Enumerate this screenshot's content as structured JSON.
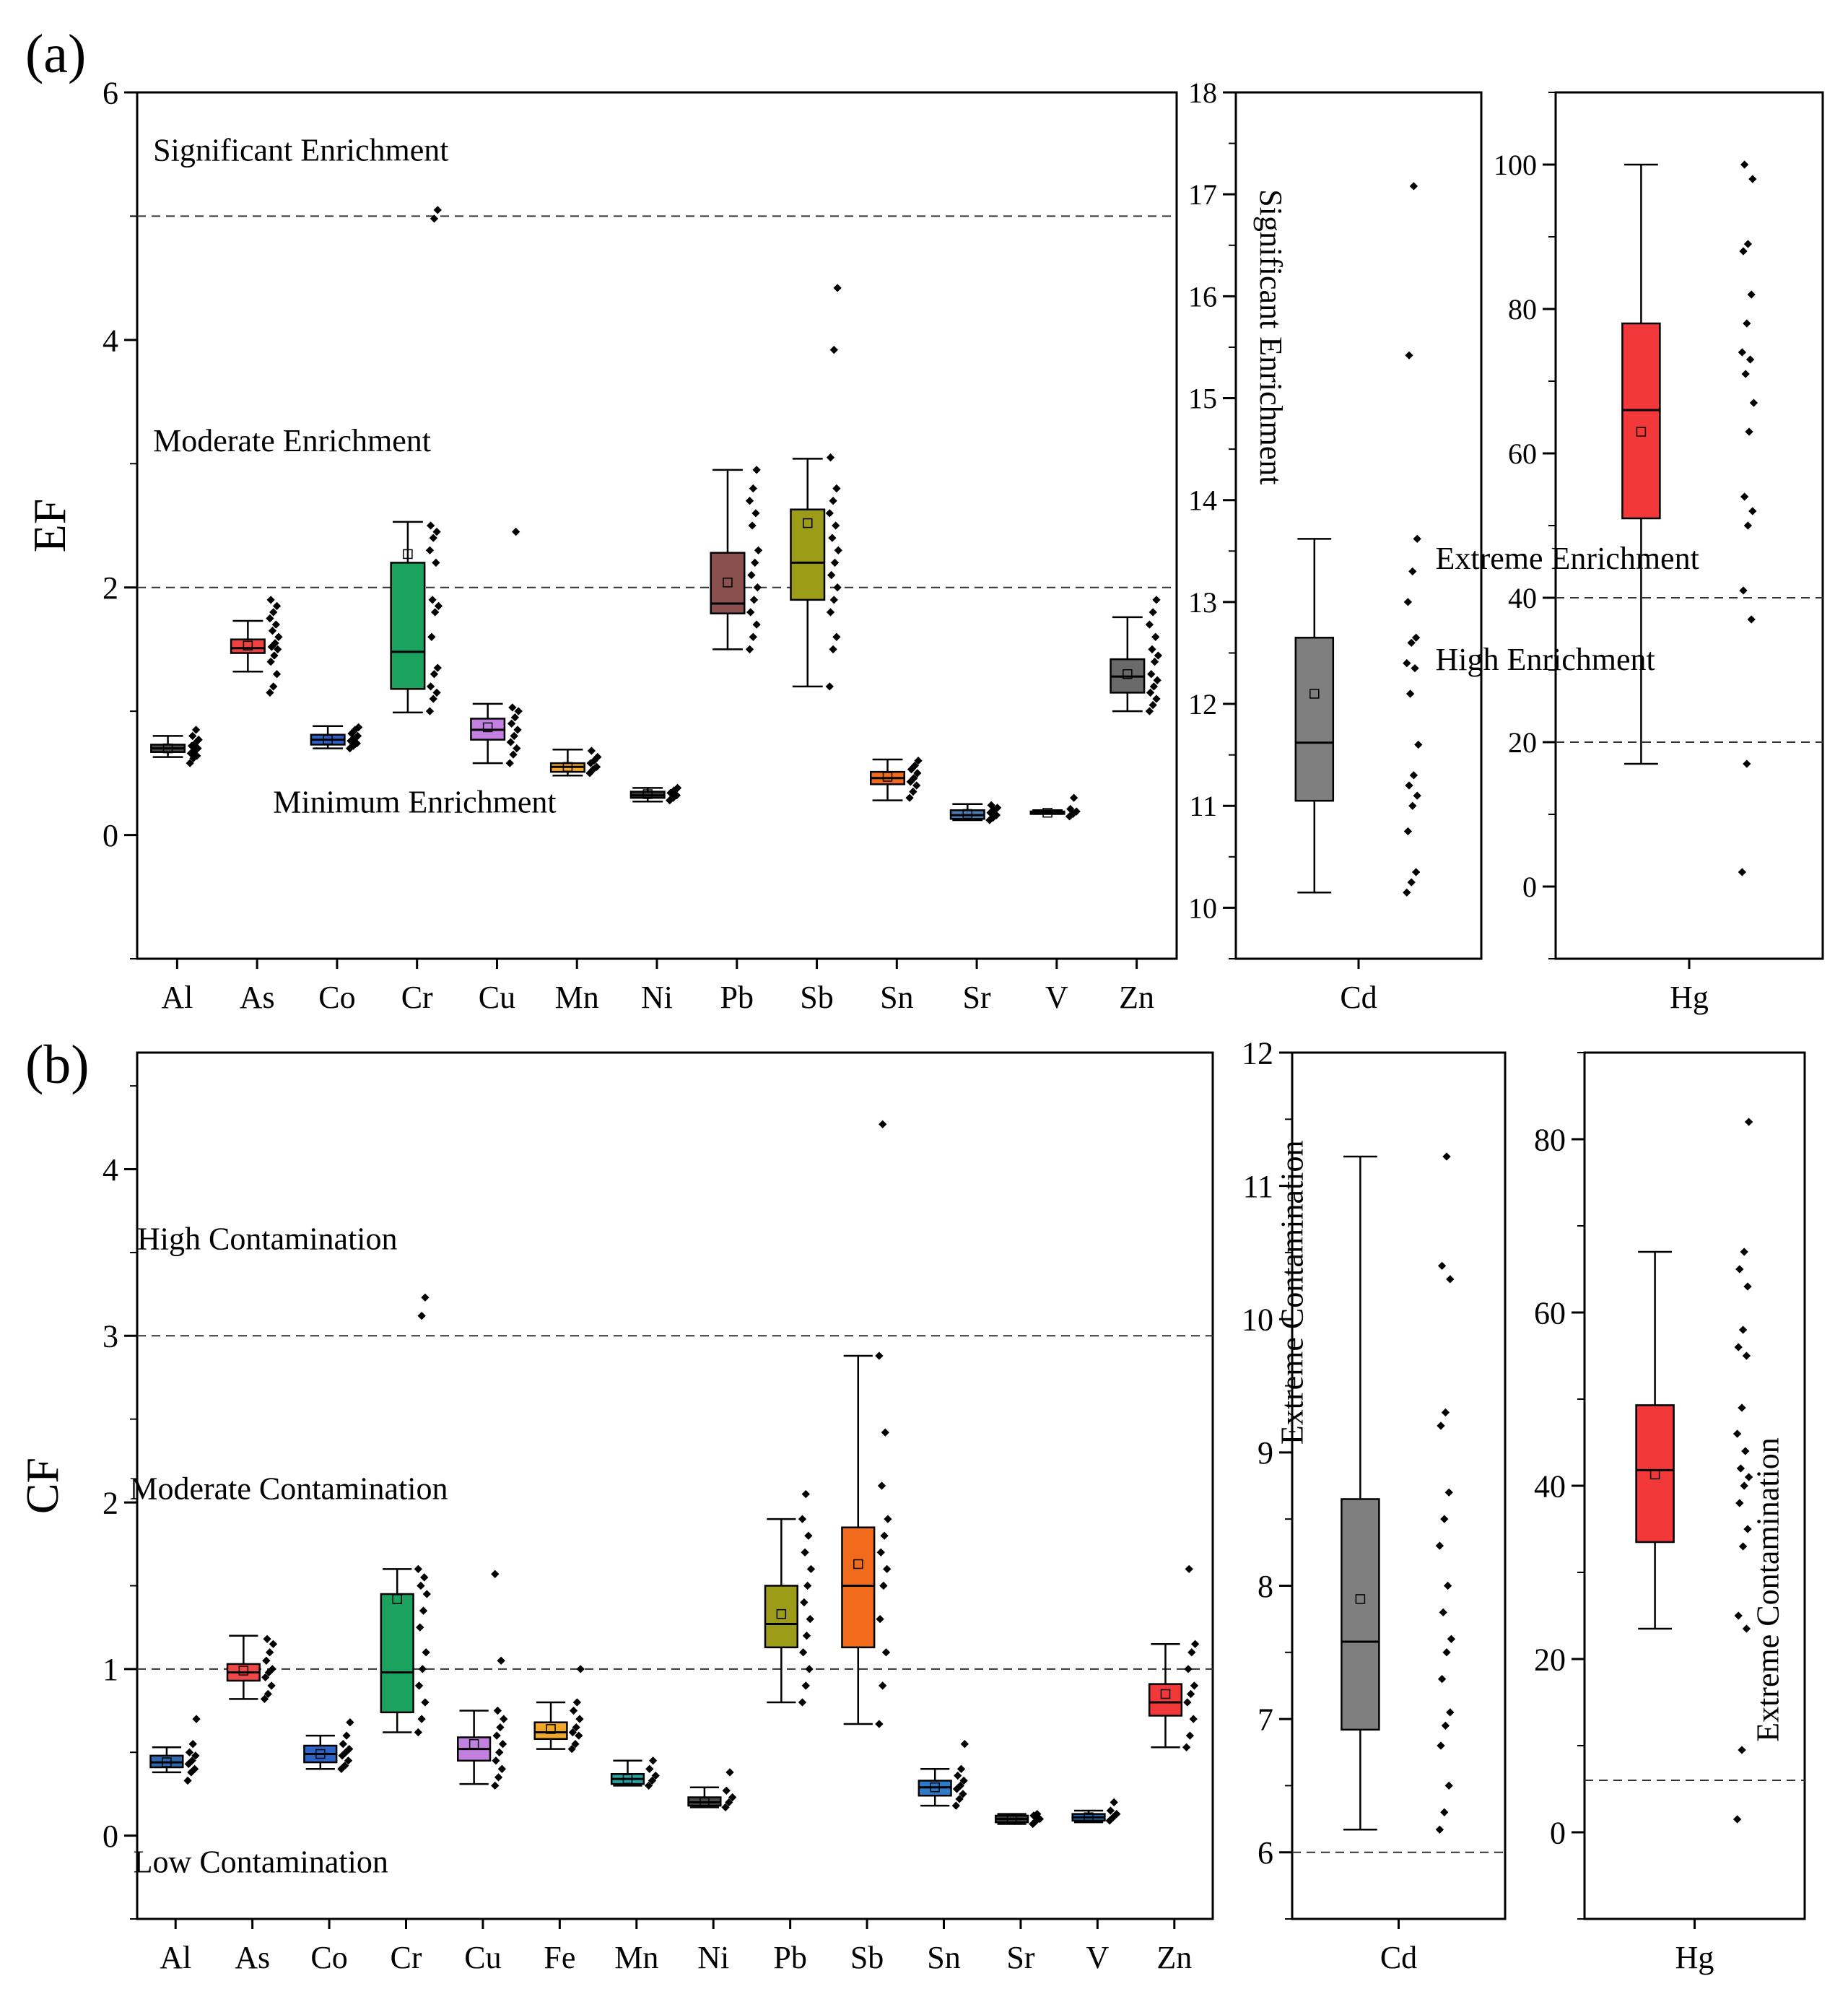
{
  "figure": {
    "panel_a_label": "(a)",
    "panel_b_label": "(b)"
  },
  "chart_data": [
    {
      "id": "a_main",
      "panel": "(a)",
      "type": "box",
      "ylabel": "EF",
      "ylim": [
        -1,
        6
      ],
      "yticks": [
        0,
        2,
        4,
        6
      ],
      "thresholds": [
        2,
        5
      ],
      "zones": [
        {
          "label": "Significant Enrichment",
          "y": 5.45,
          "x": 0.2
        },
        {
          "label": "Moderate Enrichment",
          "y": 3.1,
          "x": 0.2
        },
        {
          "label": "Minimum Enrichment",
          "y": 0.18,
          "x": 1.7
        }
      ],
      "categories": [
        "Al",
        "As",
        "Co",
        "Cr",
        "Cu",
        "Mn",
        "Ni",
        "Pb",
        "Sb",
        "Sn",
        "Sr",
        "V",
        "Zn"
      ],
      "colors": [
        "#4a4a4a",
        "#f04040",
        "#2d62c8",
        "#1aa25e",
        "#c480e0",
        "#f0a82a",
        "#3a3a3a",
        "#8a5050",
        "#9c9c18",
        "#f26a1c",
        "#4a7ab0",
        "#555555",
        "#6a6a6a"
      ],
      "boxes": [
        {
          "min": 0.63,
          "q1": 0.67,
          "median": 0.7,
          "q3": 0.73,
          "max": 0.8,
          "mean": 0.7
        },
        {
          "min": 1.32,
          "q1": 1.47,
          "median": 1.51,
          "q3": 1.58,
          "max": 1.73,
          "mean": 1.53
        },
        {
          "min": 0.7,
          "q1": 0.73,
          "median": 0.77,
          "q3": 0.81,
          "max": 0.88,
          "mean": 0.77
        },
        {
          "min": 0.99,
          "q1": 1.18,
          "median": 1.48,
          "q3": 2.2,
          "max": 2.53,
          "mean": 2.27
        },
        {
          "min": 0.58,
          "q1": 0.77,
          "median": 0.85,
          "q3": 0.94,
          "max": 1.06,
          "mean": 0.87
        },
        {
          "min": 0.48,
          "q1": 0.51,
          "median": 0.55,
          "q3": 0.58,
          "max": 0.69,
          "mean": 0.55
        },
        {
          "min": 0.27,
          "q1": 0.3,
          "median": 0.32,
          "q3": 0.35,
          "max": 0.38,
          "mean": 0.33
        },
        {
          "min": 1.5,
          "q1": 1.79,
          "median": 1.87,
          "q3": 2.28,
          "max": 2.95,
          "mean": 2.04
        },
        {
          "min": 1.2,
          "q1": 1.9,
          "median": 2.2,
          "q3": 2.63,
          "max": 3.04,
          "mean": 2.52
        },
        {
          "min": 0.28,
          "q1": 0.41,
          "median": 0.46,
          "q3": 0.51,
          "max": 0.61,
          "mean": 0.47
        },
        {
          "min": 0.12,
          "q1": 0.13,
          "median": 0.16,
          "q3": 0.2,
          "max": 0.25,
          "mean": 0.17
        },
        {
          "min": 0.17,
          "q1": 0.17,
          "median": 0.18,
          "q3": 0.19,
          "max": 0.2,
          "mean": 0.18
        },
        {
          "min": 1.0,
          "q1": 1.15,
          "median": 1.28,
          "q3": 1.42,
          "max": 1.76,
          "mean": 1.3
        }
      ],
      "points": [
        [
          0.58,
          0.62,
          0.64,
          0.66,
          0.68,
          0.7,
          0.72,
          0.74,
          0.77,
          0.8,
          0.85
        ],
        [
          1.15,
          1.2,
          1.3,
          1.4,
          1.45,
          1.5,
          1.52,
          1.55,
          1.6,
          1.65,
          1.7,
          1.75,
          1.8,
          1.85,
          1.9
        ],
        [
          0.7,
          0.72,
          0.74,
          0.76,
          0.78,
          0.8,
          0.82,
          0.85,
          0.87
        ],
        [
          1.0,
          1.1,
          1.15,
          1.2,
          1.3,
          1.35,
          1.6,
          1.8,
          1.85,
          1.9,
          2.2,
          2.3,
          2.4,
          2.45,
          2.5,
          4.98,
          5.05
        ],
        [
          0.58,
          0.65,
          0.7,
          0.75,
          0.8,
          0.85,
          0.9,
          0.95,
          1.0,
          1.03,
          2.45
        ],
        [
          0.5,
          0.53,
          0.55,
          0.58,
          0.6,
          0.63,
          0.68
        ],
        [
          0.28,
          0.3,
          0.32,
          0.34,
          0.36,
          0.38
        ],
        [
          1.5,
          1.6,
          1.7,
          1.8,
          1.9,
          2.0,
          2.1,
          2.2,
          2.3,
          2.5,
          2.6,
          2.7,
          2.8,
          2.95
        ],
        [
          1.2,
          1.5,
          1.6,
          1.8,
          1.9,
          2.0,
          2.1,
          2.2,
          2.3,
          2.4,
          2.5,
          2.6,
          2.7,
          2.8,
          3.05,
          3.92,
          4.42
        ],
        [
          0.3,
          0.35,
          0.4,
          0.43,
          0.46,
          0.5,
          0.53,
          0.56,
          0.6
        ],
        [
          0.12,
          0.14,
          0.16,
          0.18,
          0.2,
          0.22,
          0.24
        ],
        [
          0.15,
          0.17,
          0.19,
          0.21,
          0.3
        ],
        [
          1.0,
          1.05,
          1.1,
          1.15,
          1.2,
          1.25,
          1.3,
          1.4,
          1.45,
          1.5,
          1.6,
          1.7,
          1.8,
          1.9
        ]
      ]
    },
    {
      "id": "a_cd",
      "panel": "(a)",
      "type": "box",
      "ylabel": "",
      "ylim": [
        9.5,
        18
      ],
      "yticks": [
        10,
        11,
        12,
        13,
        14,
        15,
        16,
        17,
        18
      ],
      "thresholds": [],
      "zones": [
        {
          "label": "Significant Enrichment",
          "y": 15.6,
          "x": -0.4,
          "rotated": true
        }
      ],
      "categories": [
        "Cd"
      ],
      "colors": [
        "#7f7f7f"
      ],
      "boxes": [
        {
          "min": 10.15,
          "q1": 11.05,
          "median": 11.62,
          "q3": 12.65,
          "max": 13.62,
          "mean": 12.1
        }
      ],
      "points": [
        [
          10.15,
          10.25,
          10.35,
          10.75,
          11.0,
          11.1,
          11.2,
          11.3,
          11.6,
          12.1,
          12.35,
          12.4,
          12.6,
          12.65,
          13.0,
          13.3,
          13.62,
          15.42,
          17.08
        ]
      ]
    },
    {
      "id": "a_hg",
      "panel": "(a)",
      "type": "box",
      "ylabel": "",
      "ylim": [
        -10,
        110
      ],
      "yticks": [
        0,
        20,
        40,
        60,
        80,
        100
      ],
      "thresholds": [
        20,
        40
      ],
      "zones": [
        {
          "label": "Extreme Enrichment",
          "y": 44,
          "x": -0.45
        },
        {
          "label": "High Enrichment",
          "y": 30,
          "x": -0.45
        }
      ],
      "categories": [
        "Hg"
      ],
      "colors": [
        "#f23838"
      ],
      "boxes": [
        {
          "min": 17,
          "q1": 51,
          "median": 66,
          "q3": 78,
          "max": 100,
          "mean": 63
        }
      ],
      "points": [
        [
          2,
          17,
          37,
          41,
          50,
          52,
          54,
          63,
          67,
          71,
          73,
          74,
          78,
          82,
          88,
          89,
          98,
          100
        ]
      ]
    },
    {
      "id": "b_main",
      "panel": "(b)",
      "type": "box",
      "ylabel": "CF",
      "ylim": [
        -0.5,
        4.7
      ],
      "yticks": [
        0,
        1,
        2,
        3,
        4
      ],
      "thresholds": [
        1,
        3
      ],
      "zones": [
        {
          "label": "High Contamination",
          "y": 3.52,
          "x": 0.0
        },
        {
          "label": "Moderate Contamination",
          "y": 2.02,
          "x": -0.1
        },
        {
          "label": "Low Contamination",
          "y": -0.22,
          "x": -0.05
        }
      ],
      "categories": [
        "Al",
        "As",
        "Co",
        "Cr",
        "Cu",
        "Fe",
        "Mn",
        "Ni",
        "Pb",
        "Sb",
        "Sn",
        "Sr",
        "V",
        "Zn"
      ],
      "colors": [
        "#2f6ab0",
        "#f04848",
        "#2d62c8",
        "#1aa25e",
        "#c480e0",
        "#f0a82a",
        "#2aa0a0",
        "#4a4a4a",
        "#9c9c18",
        "#f26a1c",
        "#2d7ac8",
        "#3a3a3a",
        "#2a6ab0",
        "#f23838"
      ],
      "boxes": [
        {
          "min": 0.38,
          "q1": 0.41,
          "median": 0.44,
          "q3": 0.48,
          "max": 0.53,
          "mean": 0.44
        },
        {
          "min": 0.82,
          "q1": 0.93,
          "median": 0.98,
          "q3": 1.03,
          "max": 1.2,
          "mean": 0.99
        },
        {
          "min": 0.4,
          "q1": 0.44,
          "median": 0.49,
          "q3": 0.54,
          "max": 0.6,
          "mean": 0.49
        },
        {
          "min": 0.62,
          "q1": 0.74,
          "median": 0.98,
          "q3": 1.45,
          "max": 1.6,
          "mean": 1.42
        },
        {
          "min": 0.31,
          "q1": 0.45,
          "median": 0.52,
          "q3": 0.59,
          "max": 0.75,
          "mean": 0.55
        },
        {
          "min": 0.52,
          "q1": 0.58,
          "median": 0.62,
          "q3": 0.68,
          "max": 0.8,
          "mean": 0.64
        },
        {
          "min": 0.3,
          "q1": 0.31,
          "median": 0.34,
          "q3": 0.37,
          "max": 0.45,
          "mean": 0.34
        },
        {
          "min": 0.17,
          "q1": 0.18,
          "median": 0.2,
          "q3": 0.23,
          "max": 0.29,
          "mean": 0.2
        },
        {
          "min": 0.8,
          "q1": 1.13,
          "median": 1.27,
          "q3": 1.5,
          "max": 1.9,
          "mean": 1.33
        },
        {
          "min": 0.67,
          "q1": 1.13,
          "median": 1.5,
          "q3": 1.85,
          "max": 2.88,
          "mean": 1.63
        },
        {
          "min": 0.18,
          "q1": 0.24,
          "median": 0.29,
          "q3": 0.33,
          "max": 0.4,
          "mean": 0.29
        },
        {
          "min": 0.07,
          "q1": 0.08,
          "median": 0.1,
          "q3": 0.12,
          "max": 0.13,
          "mean": 0.1
        },
        {
          "min": 0.08,
          "q1": 0.09,
          "median": 0.11,
          "q3": 0.13,
          "max": 0.15,
          "mean": 0.11
        },
        {
          "min": 0.53,
          "q1": 0.72,
          "median": 0.8,
          "q3": 0.91,
          "max": 1.15,
          "mean": 0.85
        }
      ],
      "points": [
        [
          0.33,
          0.38,
          0.4,
          0.43,
          0.45,
          0.48,
          0.5,
          0.55,
          0.7
        ],
        [
          0.82,
          0.85,
          0.9,
          0.95,
          0.98,
          1.0,
          1.05,
          1.1,
          1.15,
          1.18
        ],
        [
          0.4,
          0.42,
          0.45,
          0.48,
          0.5,
          0.52,
          0.55,
          0.6,
          0.68
        ],
        [
          0.62,
          0.7,
          0.8,
          0.9,
          1.0,
          1.1,
          1.25,
          1.35,
          1.45,
          1.5,
          1.55,
          1.6,
          3.12,
          3.23
        ],
        [
          0.3,
          0.35,
          0.4,
          0.45,
          0.5,
          0.55,
          0.6,
          0.65,
          0.7,
          0.75,
          1.05,
          1.57
        ],
        [
          0.52,
          0.55,
          0.6,
          0.62,
          0.65,
          0.7,
          0.75,
          0.8,
          1.0
        ],
        [
          0.3,
          0.33,
          0.36,
          0.4,
          0.45
        ],
        [
          0.17,
          0.2,
          0.23,
          0.27,
          0.38
        ],
        [
          0.8,
          0.9,
          1.0,
          1.1,
          1.2,
          1.3,
          1.4,
          1.5,
          1.6,
          1.7,
          1.8,
          1.9,
          2.05
        ],
        [
          0.67,
          0.9,
          1.1,
          1.3,
          1.5,
          1.6,
          1.7,
          1.8,
          1.9,
          2.1,
          2.42,
          2.88,
          4.27
        ],
        [
          0.18,
          0.22,
          0.25,
          0.28,
          0.3,
          0.33,
          0.36,
          0.4,
          0.55
        ],
        [
          0.07,
          0.09,
          0.1,
          0.12,
          0.13
        ],
        [
          0.09,
          0.11,
          0.13,
          0.15,
          0.2
        ],
        [
          0.53,
          0.6,
          0.7,
          0.8,
          0.85,
          0.9,
          1.0,
          1.1,
          1.15,
          1.6
        ]
      ]
    },
    {
      "id": "b_cd",
      "panel": "(b)",
      "type": "box",
      "ylabel": "",
      "ylim": [
        5.5,
        12
      ],
      "yticks": [
        6,
        7,
        8,
        9,
        10,
        11,
        12
      ],
      "thresholds": [
        6
      ],
      "zones": [
        {
          "label": "Extreme Contamination",
          "y": 10.2,
          "x": -0.45,
          "rotated": true
        }
      ],
      "categories": [
        "Cd"
      ],
      "colors": [
        "#7f7f7f"
      ],
      "boxes": [
        {
          "min": 6.17,
          "q1": 6.92,
          "median": 7.58,
          "q3": 8.65,
          "max": 11.22,
          "mean": 7.9
        }
      ],
      "points": [
        [
          6.17,
          6.3,
          6.5,
          6.8,
          6.95,
          7.05,
          7.3,
          7.5,
          7.6,
          7.8,
          8.0,
          8.3,
          8.5,
          8.7,
          9.2,
          9.3,
          10.3,
          10.4,
          11.22
        ]
      ]
    },
    {
      "id": "b_hg",
      "panel": "(b)",
      "type": "box",
      "ylabel": "",
      "ylim": [
        -10,
        90
      ],
      "yticks": [
        0,
        20,
        40,
        60,
        80
      ],
      "thresholds": [
        6
      ],
      "zones": [
        {
          "label": "Extreme Contamination",
          "y": 28,
          "x": 0.38,
          "rotated": true
        }
      ],
      "categories": [
        "Hg"
      ],
      "colors": [
        "#f23838"
      ],
      "boxes": [
        {
          "min": 23.5,
          "q1": 33.5,
          "median": 41.8,
          "q3": 49.3,
          "max": 67,
          "mean": 41.3
        }
      ],
      "points": [
        [
          1.5,
          9.5,
          23.5,
          25,
          33,
          35,
          38,
          40,
          41,
          42,
          44,
          46,
          49,
          55,
          56,
          58,
          63,
          65,
          67,
          82
        ]
      ]
    }
  ]
}
